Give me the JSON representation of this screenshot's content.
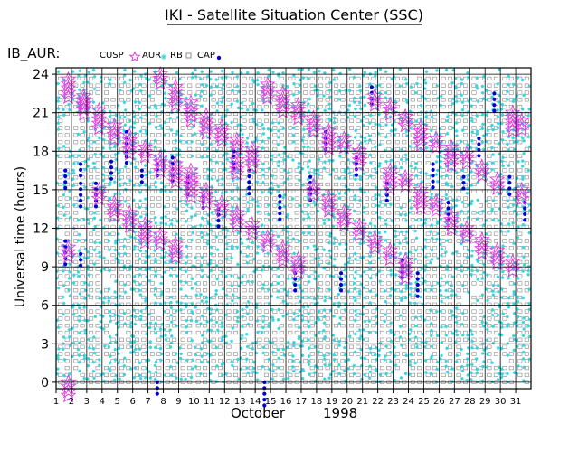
{
  "page_title": "IKI - Satellite Situation Center (SSC)",
  "colors": {
    "cusp": "#e23ce2",
    "aur": "#2fd6e0",
    "rb": "#808080",
    "cap": "#0000d0",
    "grid": "#000000",
    "text": "#000000"
  },
  "chart_data": {
    "type": "scatter",
    "title": "IB_AUR:",
    "ylabel": "Universal time (hours)",
    "xlabel_month": "October",
    "xlabel_year": "1998",
    "x_ticks": [
      "1",
      "2",
      "3",
      "4",
      "5",
      "6",
      "7",
      "8",
      "9",
      "10",
      "11",
      "12",
      "13",
      "14",
      "15",
      "16",
      "17",
      "18",
      "19",
      "20",
      "21",
      "22",
      "23",
      "24",
      "25",
      "26",
      "27",
      "28",
      "29",
      "30",
      "31"
    ],
    "y_ticks": [
      "0",
      "3",
      "6",
      "9",
      "12",
      "15",
      "18",
      "21",
      "24"
    ],
    "ylim": [
      -0.5,
      24.5
    ],
    "xlim": [
      1,
      32
    ],
    "legend": [
      {
        "label": "CUSP",
        "symbol": "star"
      },
      {
        "label": "AUR",
        "symbol": "asterisk"
      },
      {
        "label": "RB",
        "symbol": "square"
      },
      {
        "label": "CAP",
        "symbol": "dot"
      }
    ],
    "series": [
      {
        "name": "CUSP",
        "description": "Descending daily UT band of cusp crossings",
        "points": [
          [
            1.8,
            23.6
          ],
          [
            2.8,
            22.3
          ],
          [
            3.8,
            21.2
          ],
          [
            4.8,
            20.0
          ],
          [
            5.8,
            19.2
          ],
          [
            6.8,
            18.3
          ],
          [
            7.8,
            24.0
          ],
          [
            8.8,
            23.0
          ],
          [
            9.8,
            21.8
          ],
          [
            10.8,
            20.8
          ],
          [
            11.8,
            19.9
          ],
          [
            12.8,
            18.9
          ],
          [
            13.8,
            18.2
          ],
          [
            14.8,
            23.2
          ],
          [
            15.8,
            22.5
          ],
          [
            16.8,
            21.6
          ],
          [
            17.8,
            20.6
          ],
          [
            18.8,
            19.6
          ],
          [
            19.8,
            19.0
          ],
          [
            20.8,
            18.0
          ],
          [
            21.8,
            22.3
          ],
          [
            22.8,
            21.6
          ],
          [
            23.8,
            20.7
          ],
          [
            24.8,
            19.9
          ],
          [
            25.8,
            19.0
          ],
          [
            26.8,
            18.3
          ],
          [
            27.8,
            17.8
          ],
          [
            28.8,
            16.8
          ],
          [
            29.8,
            15.8
          ],
          [
            30.8,
            21.0
          ],
          [
            31.4,
            20.4
          ],
          [
            1.8,
            10.5
          ],
          [
            2.8,
            22.0
          ],
          [
            3.8,
            15.0
          ],
          [
            4.8,
            14.0
          ],
          [
            5.8,
            13.2
          ],
          [
            6.8,
            12.3
          ],
          [
            7.8,
            11.5
          ],
          [
            8.8,
            10.8
          ],
          [
            9.8,
            15.5
          ],
          [
            10.8,
            15.0
          ],
          [
            11.8,
            14.0
          ],
          [
            12.8,
            13.2
          ],
          [
            13.8,
            12.3
          ],
          [
            14.8,
            11.3
          ],
          [
            15.8,
            10.5
          ],
          [
            16.8,
            9.6
          ],
          [
            17.8,
            15.3
          ],
          [
            18.8,
            14.4
          ],
          [
            19.8,
            13.3
          ],
          [
            20.8,
            12.2
          ],
          [
            21.8,
            11.2
          ],
          [
            22.8,
            10.3
          ],
          [
            23.8,
            9.5
          ],
          [
            24.8,
            15.0
          ],
          [
            25.8,
            14.1
          ],
          [
            26.8,
            13.0
          ],
          [
            27.8,
            12.0
          ],
          [
            28.8,
            11.1
          ],
          [
            29.8,
            10.3
          ],
          [
            30.8,
            9.4
          ],
          [
            31.4,
            15.0
          ],
          [
            1.8,
            0.0
          ],
          [
            7.8,
            17.5
          ],
          [
            8.8,
            17.0
          ],
          [
            9.8,
            16.5
          ],
          [
            12.8,
            17.3
          ],
          [
            22.8,
            16.5
          ],
          [
            23.8,
            16.0
          ]
        ]
      },
      {
        "name": "CAP",
        "description": "Polar cap crossings",
        "points": [
          [
            1.6,
            16.5
          ],
          [
            1.6,
            11.0
          ],
          [
            2.6,
            17.0
          ],
          [
            2.6,
            15.5
          ],
          [
            2.6,
            10.0
          ],
          [
            3.6,
            15.5
          ],
          [
            4.6,
            17.2
          ],
          [
            5.6,
            19.5
          ],
          [
            5.6,
            18.0
          ],
          [
            6.6,
            16.5
          ],
          [
            7.6,
            17.0
          ],
          [
            7.6,
            0.0
          ],
          [
            8.6,
            17.5
          ],
          [
            9.6,
            16.0
          ],
          [
            10.6,
            14.5
          ],
          [
            11.6,
            13.5
          ],
          [
            12.6,
            18.0
          ],
          [
            13.6,
            16.5
          ],
          [
            14.6,
            0.0
          ],
          [
            15.6,
            14.5
          ],
          [
            16.6,
            8.5
          ],
          [
            17.6,
            16.0
          ],
          [
            18.6,
            19.5
          ],
          [
            19.6,
            8.5
          ],
          [
            20.6,
            17.5
          ],
          [
            21.6,
            23.0
          ],
          [
            22.6,
            15.5
          ],
          [
            23.6,
            9.5
          ],
          [
            24.6,
            8.5
          ],
          [
            25.6,
            17.0
          ],
          [
            26.6,
            14.0
          ],
          [
            27.6,
            16.0
          ],
          [
            28.6,
            19.0
          ],
          [
            29.6,
            22.5
          ],
          [
            30.6,
            16.0
          ],
          [
            31.6,
            14.0
          ]
        ]
      }
    ]
  }
}
